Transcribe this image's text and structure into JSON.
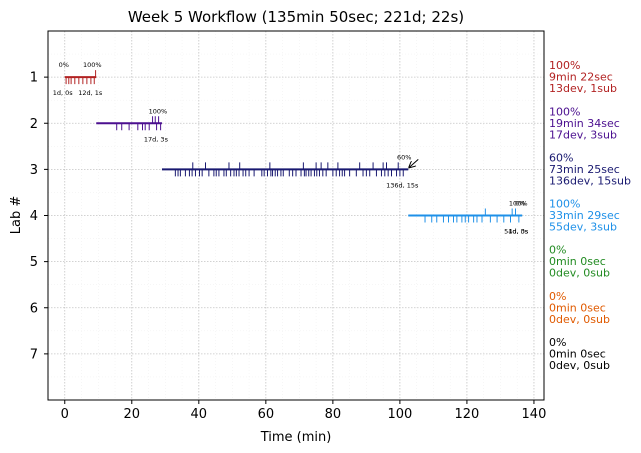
{
  "chart_data": {
    "type": "timeline",
    "title": "Week 5 Workflow (135min 50sec; 221d; 22s)",
    "xlabel": "Time (min)",
    "ylabel": "Lab #",
    "xlim": [
      -5,
      143
    ],
    "ylim": [
      8,
      0
    ],
    "xticks": [
      0,
      20,
      40,
      60,
      80,
      100,
      120,
      140
    ],
    "yticks": [
      1,
      2,
      3,
      4,
      5,
      6,
      7
    ],
    "grid": true,
    "labs": [
      {
        "lab": 1,
        "color": "#b22222",
        "start": 0,
        "end": 9.4,
        "start_pct": "0%",
        "end_pct": "100%",
        "dev_label": "1d, 0s",
        "end_label": "12d, 1s",
        "ticks": [
          0.4,
          1.2,
          1.9,
          3.0,
          4.2,
          5.4,
          6.6,
          7.8,
          8.8
        ],
        "sub_ticks": [
          9.2
        ],
        "summary": [
          "100%",
          "9min 22sec",
          "13dev, 1sub"
        ]
      },
      {
        "lab": 2,
        "color": "#4b0f8f",
        "start": 9.4,
        "end": 29.0,
        "end_pct": "100%",
        "end_label": "17d, 3s",
        "ticks": [
          15.5,
          17.0,
          19.2,
          21.8,
          23.2,
          24.0,
          25.2,
          27.4,
          28.6
        ],
        "sub_ticks": [
          26.2,
          27.0,
          28.0
        ],
        "summary": [
          "100%",
          "19min 34sec",
          "17dev, 3sub"
        ]
      },
      {
        "lab": 3,
        "color": "#191970",
        "start": 29.0,
        "end": 102.5,
        "end_pct": "60%",
        "end_label": "136d, 15s",
        "ticks": [
          33.0,
          33.8,
          34.5,
          36.0,
          37.2,
          38.0,
          39.0,
          40.2,
          41.0,
          43.0,
          44.5,
          45.2,
          46.0,
          47.5,
          48.2,
          49.5,
          50.5,
          51.2,
          52.0,
          53.2,
          54.0,
          55.0,
          56.5,
          58.8,
          59.5,
          60.5,
          61.5,
          62.0,
          62.8,
          63.5,
          64.5,
          65.2,
          67.0,
          68.0,
          69.0,
          70.5,
          71.5,
          72.0,
          72.8,
          73.5,
          74.5,
          75.2,
          76.0,
          77.0,
          78.0,
          80.0,
          81.0,
          82.0,
          82.8,
          83.5,
          85.0,
          87.0,
          89.0,
          90.0,
          91.0,
          93.0,
          94.5,
          95.5,
          96.5,
          97.5,
          99.0,
          100.0,
          101.0
        ],
        "sub_ticks": [
          38.2,
          42.0,
          49.0,
          52.2,
          61.2,
          71.2,
          75.0,
          76.5,
          78.5,
          81.5,
          88.0,
          92.0,
          95.0,
          96.0,
          99.5
        ],
        "summary": [
          "60%",
          "73min 25sec",
          "136dev, 15sub"
        ]
      },
      {
        "lab": 4,
        "color": "#1e90e8",
        "start": 102.5,
        "end": 136.5,
        "end_pct": "100%",
        "extra_pct": "0%",
        "end_label": "54d, 3s",
        "extra_label": "1d, 0s",
        "ticks": [
          107.5,
          109.5,
          111.0,
          113.0,
          114.5,
          116.0,
          117.0,
          118.5,
          119.5,
          120.5,
          122.0,
          123.0,
          124.5,
          127.0,
          129.0,
          131.0,
          133.0,
          135.5
        ],
        "sub_ticks": [
          125.5,
          133.5,
          134.5
        ],
        "summary": [
          "100%",
          "33min 29sec",
          "55dev, 3sub"
        ]
      },
      {
        "lab": 5,
        "color": "#228b22",
        "summary": [
          "0%",
          "0min 0sec",
          "0dev, 0sub"
        ]
      },
      {
        "lab": 6,
        "color": "#e05a00",
        "summary": [
          "0%",
          "0min 0sec",
          "0dev, 0sub"
        ]
      },
      {
        "lab": 7,
        "color": "#000000",
        "summary": [
          "0%",
          "0min 0sec",
          "0dev, 0sub"
        ]
      }
    ]
  }
}
